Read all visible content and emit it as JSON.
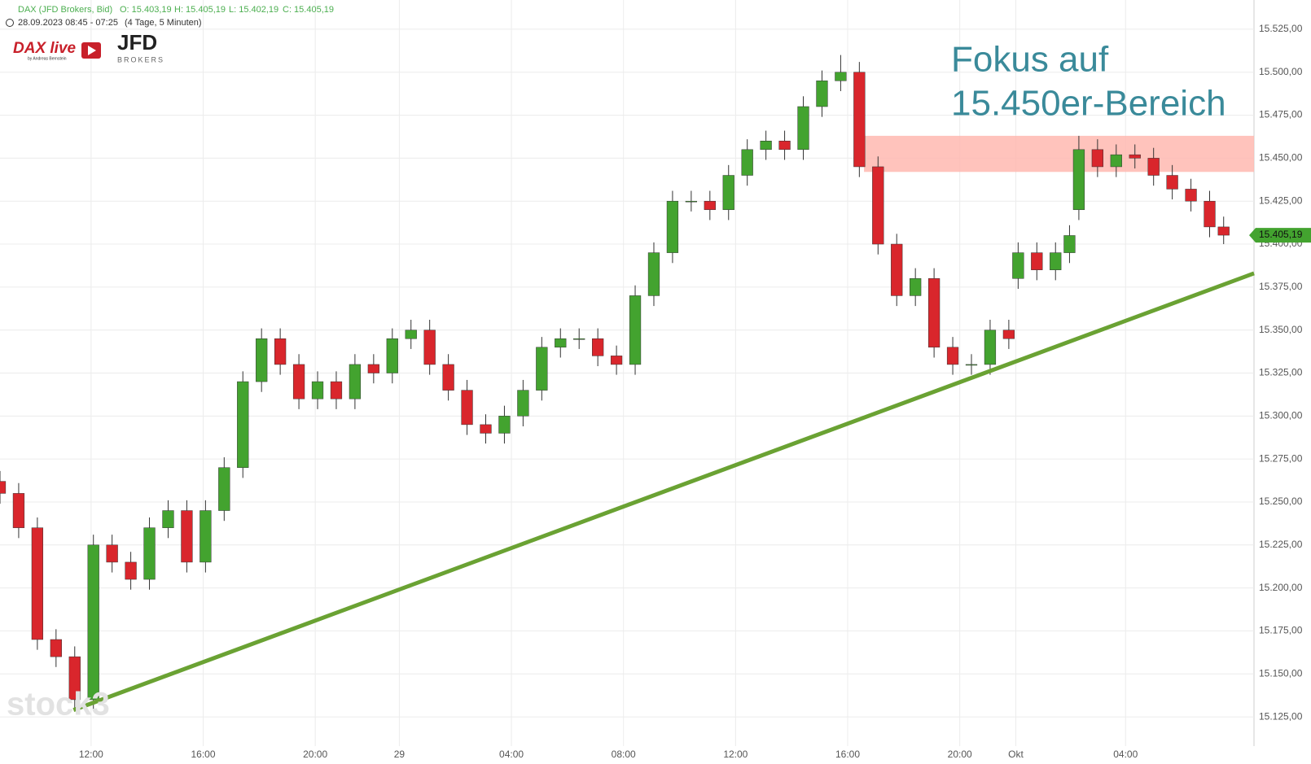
{
  "chart_data": {
    "type": "candlestick",
    "header": {
      "instrument": "DAX (JFD Brokers, Bid)",
      "open": "O: 15.403,19",
      "high": "H: 15.405,19",
      "low": "L: 15.402,19",
      "close": "C: 15.405,19",
      "range": "28.09.2023 08:45 - 07:25",
      "period": "(4 Tage, 5 Minuten)"
    },
    "logo": {
      "text": "DAX live",
      "sub": "by Andreas Bernstein",
      "broker": "JFD",
      "broker_sub": "BROKERS"
    },
    "watermark": "stock3",
    "annotation": [
      "Fokus auf",
      "15.450er-Bereich"
    ],
    "last_price_label": "15.405,19",
    "colors": {
      "up": "#43a32f",
      "down": "#d9262c",
      "grid": "#ececec"
    },
    "x": [
      0,
      8,
      16,
      24,
      32,
      40,
      48,
      56,
      64,
      72,
      80,
      88,
      96,
      104,
      112,
      120,
      128,
      136,
      144,
      152,
      160,
      168,
      176,
      184,
      192,
      200,
      208,
      216,
      224,
      232,
      240,
      248,
      256,
      264,
      272,
      280,
      288,
      296,
      304,
      312,
      320,
      328,
      336,
      344,
      352,
      360,
      368,
      376,
      384,
      392,
      400,
      408,
      416,
      424,
      432,
      436,
      444,
      452,
      458,
      462,
      470,
      478,
      486,
      494,
      502,
      510,
      518,
      524
    ],
    "open": [
      15262,
      15255,
      15235,
      15170,
      15160,
      15135,
      15225,
      15215,
      15205,
      15235,
      15245,
      15215,
      15245,
      15270,
      15320,
      15345,
      15330,
      15310,
      15320,
      15310,
      15330,
      15325,
      15345,
      15350,
      15330,
      15315,
      15295,
      15290,
      15300,
      15315,
      15340,
      15345,
      15345,
      15335,
      15330,
      15370,
      15395,
      15425,
      15425,
      15420,
      15440,
      15455,
      15460,
      15455,
      15480,
      15495,
      15500,
      15445,
      15400,
      15370,
      15380,
      15340,
      15330,
      15330,
      15350,
      15380,
      15395,
      15385,
      15395,
      15420,
      15455,
      15445,
      15452,
      15450,
      15440,
      15432,
      15425,
      15410
    ],
    "high": [
      15268,
      15261,
      15241,
      15176,
      15166,
      15231,
      15231,
      15221,
      15241,
      15251,
      15251,
      15251,
      15276,
      15326,
      15351,
      15351,
      15336,
      15326,
      15326,
      15336,
      15336,
      15351,
      15356,
      15356,
      15336,
      15321,
      15301,
      15306,
      15321,
      15346,
      15351,
      15351,
      15351,
      15341,
      15376,
      15401,
      15431,
      15431,
      15431,
      15446,
      15461,
      15466,
      15466,
      15486,
      15501,
      15510,
      15506,
      15451,
      15406,
      15386,
      15386,
      15346,
      15336,
      15356,
      15356,
      15401,
      15401,
      15401,
      15411,
      15463,
      15461,
      15458,
      15458,
      15456,
      15446,
      15438,
      15431,
      15416
    ],
    "low": [
      15249,
      15229,
      15164,
      15154,
      15129,
      15129,
      15209,
      15199,
      15199,
      15229,
      15209,
      15209,
      15239,
      15264,
      15314,
      15324,
      15304,
      15304,
      15304,
      15304,
      15319,
      15319,
      15339,
      15324,
      15309,
      15289,
      15284,
      15284,
      15294,
      15309,
      15334,
      15339,
      15329,
      15324,
      15324,
      15364,
      15389,
      15419,
      15414,
      15414,
      15434,
      15449,
      15449,
      15449,
      15474,
      15489,
      15439,
      15394,
      15364,
      15364,
      15334,
      15324,
      15324,
      15324,
      15339,
      15374,
      15379,
      15379,
      15389,
      15414,
      15439,
      15439,
      15444,
      15434,
      15426,
      15419,
      15404,
      15400
    ],
    "close": [
      15255,
      15235,
      15170,
      15160,
      15135,
      15225,
      15215,
      15205,
      15235,
      15245,
      15215,
      15245,
      15270,
      15320,
      15345,
      15330,
      15310,
      15320,
      15310,
      15330,
      15325,
      15345,
      15350,
      15330,
      15315,
      15295,
      15290,
      15300,
      15315,
      15340,
      15345,
      15345,
      15335,
      15330,
      15370,
      15395,
      15425,
      15425,
      15420,
      15440,
      15455,
      15460,
      15455,
      15480,
      15495,
      15500,
      15445,
      15400,
      15370,
      15380,
      15340,
      15330,
      15330,
      15350,
      15345,
      15395,
      15385,
      15395,
      15405,
      15455,
      15445,
      15452,
      15450,
      15440,
      15432,
      15425,
      15410,
      15405.19
    ],
    "trendline": {
      "x": [
        31.5,
        537
      ],
      "y": [
        15129,
        15383
      ],
      "color": "#6aa233"
    },
    "zone": {
      "x": [
        370,
        537
      ],
      "y": [
        15442,
        15463
      ],
      "color": "#ffb8b0"
    },
    "xlim": [
      0,
      537
    ],
    "ylim": [
      15108,
      15542
    ],
    "xticks": [
      {
        "value": 39,
        "label": "12:00"
      },
      {
        "value": 87,
        "label": "16:00"
      },
      {
        "value": 135,
        "label": "20:00"
      },
      {
        "value": 171,
        "label": "29"
      },
      {
        "value": 219,
        "label": "04:00"
      },
      {
        "value": 267,
        "label": "08:00"
      },
      {
        "value": 315,
        "label": "12:00"
      },
      {
        "value": 363,
        "label": "16:00"
      },
      {
        "value": 411,
        "label": "20:00"
      },
      {
        "value": 435,
        "label": "Okt"
      },
      {
        "value": 482,
        "label": "04:00"
      }
    ],
    "yticks": [
      {
        "value": 15125,
        "label": "15.125,00"
      },
      {
        "value": 15150,
        "label": "15.150,00"
      },
      {
        "value": 15175,
        "label": "15.175,00"
      },
      {
        "value": 15200,
        "label": "15.200,00"
      },
      {
        "value": 15225,
        "label": "15.225,00"
      },
      {
        "value": 15250,
        "label": "15.250,00"
      },
      {
        "value": 15275,
        "label": "15.275,00"
      },
      {
        "value": 15300,
        "label": "15.300,00"
      },
      {
        "value": 15325,
        "label": "15.325,00"
      },
      {
        "value": 15350,
        "label": "15.350,00"
      },
      {
        "value": 15375,
        "label": "15.375,00"
      },
      {
        "value": 15400,
        "label": "15.400,00"
      },
      {
        "value": 15425,
        "label": "15.425,00"
      },
      {
        "value": 15450,
        "label": "15.450,00"
      },
      {
        "value": 15475,
        "label": "15.475,00"
      },
      {
        "value": 15500,
        "label": "15.500,00"
      },
      {
        "value": 15525,
        "label": "15.525,00"
      }
    ],
    "grid": true
  }
}
